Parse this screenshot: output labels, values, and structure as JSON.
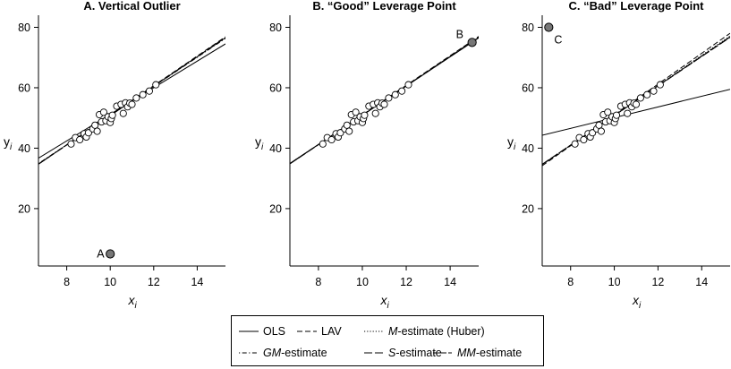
{
  "chart_data": [
    {
      "type": "scatter",
      "title": "A. Vertical Outlier",
      "xlabel": "x",
      "ylabel": "y",
      "xlim": [
        6.7,
        15.3
      ],
      "ylim": [
        1,
        84
      ],
      "xticks": [
        "8",
        "10",
        "12",
        "14"
      ],
      "yticks": [
        "20",
        "40",
        "60",
        "80"
      ],
      "points": [
        [
          8.2,
          41.4
        ],
        [
          8.4,
          43.5
        ],
        [
          8.6,
          42.8
        ],
        [
          8.8,
          44.8
        ],
        [
          8.9,
          43.7
        ],
        [
          9.0,
          45.1
        ],
        [
          9.2,
          46.4
        ],
        [
          9.3,
          47.6
        ],
        [
          9.4,
          45.6
        ],
        [
          9.5,
          51.1
        ],
        [
          9.6,
          48.7
        ],
        [
          9.7,
          51.9
        ],
        [
          9.8,
          49.1
        ],
        [
          9.9,
          50.4
        ],
        [
          10.0,
          48.5
        ],
        [
          10.05,
          49.8
        ],
        [
          10.1,
          50.9
        ],
        [
          10.3,
          53.9
        ],
        [
          10.5,
          54.5
        ],
        [
          10.6,
          51.5
        ],
        [
          10.7,
          55.0
        ],
        [
          10.8,
          53.7
        ],
        [
          10.9,
          54.9
        ],
        [
          11.0,
          54.5
        ],
        [
          11.2,
          56.6
        ],
        [
          11.5,
          57.7
        ],
        [
          11.8,
          58.9
        ],
        [
          12.1,
          61.0
        ]
      ],
      "outlier": {
        "x": 10.0,
        "y": 5.0,
        "label": "A"
      },
      "fits": [
        {
          "estimator": "OLS",
          "intercept": 7.2,
          "slope": 4.4
        },
        {
          "estimator": "LAV",
          "intercept": 1.9,
          "slope": 4.9
        },
        {
          "estimator": "M-estimate (Huber)",
          "intercept": 2.3,
          "slope": 4.85
        },
        {
          "estimator": "GM-estimate",
          "intercept": 2.6,
          "slope": 4.82
        },
        {
          "estimator": "S-estimate",
          "intercept": 2.0,
          "slope": 4.88
        },
        {
          "estimator": "MM-estimate",
          "intercept": 2.2,
          "slope": 4.86
        }
      ]
    },
    {
      "type": "scatter",
      "title": "B. “Good” Leverage Point",
      "xlabel": "x",
      "ylabel": "y",
      "xlim": [
        6.7,
        15.3
      ],
      "ylim": [
        1,
        84
      ],
      "xticks": [
        "8",
        "10",
        "12",
        "14"
      ],
      "yticks": [
        "20",
        "40",
        "60",
        "80"
      ],
      "points": [
        [
          8.2,
          41.4
        ],
        [
          8.4,
          43.5
        ],
        [
          8.6,
          42.8
        ],
        [
          8.8,
          44.8
        ],
        [
          8.9,
          43.7
        ],
        [
          9.0,
          45.1
        ],
        [
          9.2,
          46.4
        ],
        [
          9.3,
          47.6
        ],
        [
          9.4,
          45.6
        ],
        [
          9.5,
          51.1
        ],
        [
          9.6,
          48.7
        ],
        [
          9.7,
          51.9
        ],
        [
          9.8,
          49.1
        ],
        [
          9.9,
          50.4
        ],
        [
          10.0,
          48.5
        ],
        [
          10.05,
          49.8
        ],
        [
          10.1,
          50.9
        ],
        [
          10.3,
          53.9
        ],
        [
          10.5,
          54.5
        ],
        [
          10.6,
          51.5
        ],
        [
          10.7,
          55.0
        ],
        [
          10.8,
          53.7
        ],
        [
          10.9,
          54.9
        ],
        [
          11.0,
          54.5
        ],
        [
          11.2,
          56.6
        ],
        [
          11.5,
          57.7
        ],
        [
          11.8,
          58.9
        ],
        [
          12.1,
          61.0
        ]
      ],
      "outlier": {
        "x": 15.0,
        "y": 75.0,
        "label": "B"
      },
      "fits": [
        {
          "estimator": "OLS",
          "intercept": 2.6,
          "slope": 4.83
        },
        {
          "estimator": "LAV",
          "intercept": 2.0,
          "slope": 4.9
        },
        {
          "estimator": "M-estimate (Huber)",
          "intercept": 2.4,
          "slope": 4.85
        },
        {
          "estimator": "GM-estimate",
          "intercept": 2.5,
          "slope": 4.84
        },
        {
          "estimator": "S-estimate",
          "intercept": 2.1,
          "slope": 4.88
        },
        {
          "estimator": "MM-estimate",
          "intercept": 2.3,
          "slope": 4.86
        }
      ]
    },
    {
      "type": "scatter",
      "title": "C. “Bad” Leverage Point",
      "xlabel": "x",
      "ylabel": "y",
      "xlim": [
        6.7,
        15.3
      ],
      "ylim": [
        1,
        84
      ],
      "xticks": [
        "8",
        "10",
        "12",
        "14"
      ],
      "yticks": [
        "20",
        "40",
        "60",
        "80"
      ],
      "points": [
        [
          8.2,
          41.4
        ],
        [
          8.4,
          43.5
        ],
        [
          8.6,
          42.8
        ],
        [
          8.8,
          44.8
        ],
        [
          8.9,
          43.7
        ],
        [
          9.0,
          45.1
        ],
        [
          9.2,
          46.4
        ],
        [
          9.3,
          47.6
        ],
        [
          9.4,
          45.6
        ],
        [
          9.5,
          51.1
        ],
        [
          9.6,
          48.7
        ],
        [
          9.7,
          51.9
        ],
        [
          9.8,
          49.1
        ],
        [
          9.9,
          50.4
        ],
        [
          10.0,
          48.5
        ],
        [
          10.05,
          49.8
        ],
        [
          10.1,
          50.9
        ],
        [
          10.3,
          53.9
        ],
        [
          10.5,
          54.5
        ],
        [
          10.6,
          51.5
        ],
        [
          10.7,
          55.0
        ],
        [
          10.8,
          53.7
        ],
        [
          10.9,
          54.9
        ],
        [
          11.0,
          54.5
        ],
        [
          11.2,
          56.6
        ],
        [
          11.5,
          57.7
        ],
        [
          11.8,
          58.9
        ],
        [
          12.1,
          61.0
        ]
      ],
      "outlier": {
        "x": 7.0,
        "y": 80.0,
        "label": "C"
      },
      "fits": [
        {
          "estimator": "OLS",
          "intercept": 32.4,
          "slope": 1.77
        },
        {
          "estimator": "LAV",
          "intercept": 0.0,
          "slope": 5.1
        },
        {
          "estimator": "M-estimate (Huber)",
          "intercept": 1.4,
          "slope": 4.95
        },
        {
          "estimator": "GM-estimate",
          "intercept": 1.8,
          "slope": 4.9
        },
        {
          "estimator": "S-estimate",
          "intercept": 2.0,
          "slope": 4.88
        },
        {
          "estimator": "MM-estimate",
          "intercept": 1.6,
          "slope": 4.92
        }
      ]
    }
  ],
  "legend": {
    "entries": [
      {
        "key": "OLS",
        "style": "solid",
        "parts": [
          {
            "t": "OLS",
            "i": false
          }
        ]
      },
      {
        "key": "LAV",
        "style": "dash",
        "parts": [
          {
            "t": "LAV",
            "i": false
          }
        ]
      },
      {
        "key": "M-estimate (Huber)",
        "style": "dot",
        "parts": [
          {
            "t": "M",
            "i": true
          },
          {
            "t": "-estimate (Huber)",
            "i": false
          }
        ]
      },
      {
        "key": "GM-estimate",
        "style": "dotdash",
        "parts": [
          {
            "t": "GM",
            "i": true
          },
          {
            "t": "-estimate",
            "i": false
          }
        ]
      },
      {
        "key": "S-estimate",
        "style": "longdash",
        "parts": [
          {
            "t": "S",
            "i": true
          },
          {
            "t": "-estimate",
            "i": false
          }
        ]
      },
      {
        "key": "MM-estimate",
        "style": "twodash",
        "parts": [
          {
            "t": "MM",
            "i": true
          },
          {
            "t": "-estimate",
            "i": false
          }
        ]
      }
    ]
  },
  "colors": {
    "axis": "#000000",
    "outlier_fill": "#777777",
    "point_fill": "#ffffff"
  }
}
